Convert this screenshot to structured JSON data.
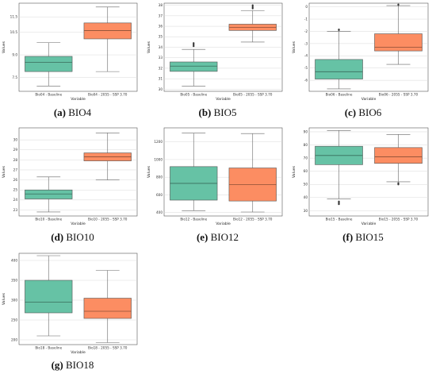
{
  "chart_data": [
    {
      "id": "bio4",
      "type": "box",
      "caption_letter": "(a)",
      "caption_text": "BIO4",
      "xlabel": "Variable",
      "ylabel": "Values",
      "ylim": [
        6.6,
        12.4
      ],
      "yticks": [
        7.5,
        9.0,
        10.5,
        11.5
      ],
      "yticklabels": [
        "7.5",
        "9.0",
        "10.5",
        "11.5"
      ],
      "categories": [
        "Bio04 - Baseline",
        "Bio04 - 2055 - SSP 3.70"
      ],
      "colors": [
        "#66c2a5",
        "#fc8d62"
      ],
      "boxes": [
        {
          "whislo": 6.95,
          "q1": 7.9,
          "med": 8.5,
          "q3": 8.9,
          "whishi": 9.8,
          "fliers": []
        },
        {
          "whislo": 7.9,
          "q1": 10.05,
          "med": 10.6,
          "q3": 11.1,
          "whishi": 12.15,
          "fliers": []
        }
      ]
    },
    {
      "id": "bio5",
      "type": "box",
      "caption_letter": "(b)",
      "caption_text": "BIO5",
      "xlabel": "Variable",
      "ylabel": "Values",
      "ylim": [
        29.8,
        38.2
      ],
      "yticks": [
        30,
        31,
        32,
        33,
        34,
        35,
        36,
        37,
        38
      ],
      "yticklabels": [
        "30",
        "31",
        "32",
        "33",
        "34",
        "35",
        "36",
        "37",
        "38"
      ],
      "categories": [
        "Bio05 - Baseline",
        "Bio05 - 2055 - SSP 3.70"
      ],
      "colors": [
        "#66c2a5",
        "#fc8d62"
      ],
      "boxes": [
        {
          "whislo": 30.3,
          "q1": 31.7,
          "med": 32.2,
          "q3": 32.6,
          "whishi": 33.8,
          "fliers": [
            34.1,
            34.2,
            34.3,
            34.4
          ]
        },
        {
          "whislo": 34.5,
          "q1": 35.6,
          "med": 35.9,
          "q3": 36.2,
          "whishi": 37.5,
          "fliers": [
            37.7,
            37.8,
            37.9,
            38.0
          ]
        }
      ]
    },
    {
      "id": "bio6",
      "type": "box",
      "caption_letter": "(c)",
      "caption_text": "BIO6",
      "xlabel": "Variable",
      "ylabel": "Values",
      "ylim": [
        -6.9,
        0.3
      ],
      "yticks": [
        -6,
        -5,
        -4,
        -3,
        -2,
        -1,
        0
      ],
      "yticklabels": [
        "-6",
        "-5",
        "-4",
        "-3",
        "-2",
        "-1",
        "0"
      ],
      "categories": [
        "Bio06 - Baseline",
        "Bio06 - 2055 - SSP 3.70"
      ],
      "colors": [
        "#66c2a5",
        "#fc8d62"
      ],
      "boxes": [
        {
          "whislo": -6.7,
          "q1": -5.9,
          "med": -5.3,
          "q3": -4.3,
          "whishi": -2.0,
          "fliers": [
            -1.9,
            -1.85
          ]
        },
        {
          "whislo": -4.7,
          "q1": -3.6,
          "med": -3.3,
          "q3": -2.2,
          "whishi": 0.1,
          "fliers": [
            0.15,
            0.2
          ]
        }
      ]
    },
    {
      "id": "bio10",
      "type": "box",
      "caption_letter": "(d)",
      "caption_text": "BIO10",
      "xlabel": "Variable",
      "ylabel": "Values",
      "ylim": [
        22.4,
        31.2
      ],
      "yticks": [
        23,
        24,
        25,
        26,
        27,
        28,
        29,
        30
      ],
      "yticklabels": [
        "23",
        "24",
        "25",
        "26",
        "27",
        "28",
        "29",
        "30"
      ],
      "categories": [
        "Bio10 - Baseline",
        "Bio10 - 2055 - SSP 3.70"
      ],
      "colors": [
        "#66c2a5",
        "#fc8d62"
      ],
      "boxes": [
        {
          "whislo": 22.8,
          "q1": 24.1,
          "med": 24.6,
          "q3": 25.0,
          "whishi": 26.3,
          "fliers": []
        },
        {
          "whislo": 26.0,
          "q1": 27.9,
          "med": 28.3,
          "q3": 28.7,
          "whishi": 30.7,
          "fliers": []
        }
      ]
    },
    {
      "id": "bio12",
      "type": "box",
      "caption_letter": "(e)",
      "caption_text": "BIO12",
      "xlabel": "Variable",
      "ylabel": "Values",
      "ylim": [
        360,
        1360
      ],
      "yticks": [
        400,
        600,
        800,
        1000,
        1200
      ],
      "yticklabels": [
        "400",
        "600",
        "800",
        "1000",
        "1200"
      ],
      "categories": [
        "Bio12 - Baseline",
        "Bio12 - 2055 - SSP 3.70"
      ],
      "colors": [
        "#66c2a5",
        "#fc8d62"
      ],
      "boxes": [
        {
          "whislo": 420,
          "q1": 540,
          "med": 730,
          "q3": 920,
          "whishi": 1300,
          "fliers": []
        },
        {
          "whislo": 405,
          "q1": 530,
          "med": 715,
          "q3": 905,
          "whishi": 1295,
          "fliers": []
        }
      ]
    },
    {
      "id": "bio15",
      "type": "box",
      "caption_letter": "(f)",
      "caption_text": "BIO15",
      "xlabel": "Variable",
      "ylabel": "Values",
      "ylim": [
        26,
        93
      ],
      "yticks": [
        30,
        40,
        50,
        60,
        70,
        80,
        90
      ],
      "yticklabels": [
        "30",
        "40",
        "50",
        "60",
        "70",
        "80",
        "90"
      ],
      "categories": [
        "Bio15 - Baseline",
        "Bio15 - 2055 - SSP 3.70"
      ],
      "colors": [
        "#66c2a5",
        "#fc8d62"
      ],
      "boxes": [
        {
          "whislo": 39,
          "q1": 65,
          "med": 72,
          "q3": 79,
          "whishi": 91,
          "fliers": [
            37,
            36.5,
            36,
            35.5,
            35
          ]
        },
        {
          "whislo": 52,
          "q1": 66,
          "med": 71,
          "q3": 78,
          "whishi": 88,
          "fliers": [
            51,
            50.5,
            50
          ]
        }
      ]
    },
    {
      "id": "bio18",
      "type": "box",
      "caption_letter": "(g)",
      "caption_text": "BIO18",
      "xlabel": "Variable",
      "ylabel": "Values",
      "ylim": [
        188,
        418
      ],
      "yticks": [
        200,
        250,
        300,
        350,
        400
      ],
      "yticklabels": [
        "200",
        "250",
        "300",
        "350",
        "400"
      ],
      "categories": [
        "Bio18 - Baseline",
        "Bio18 - 2055 - SSP 3.70"
      ],
      "colors": [
        "#66c2a5",
        "#fc8d62"
      ],
      "boxes": [
        {
          "whislo": 210,
          "q1": 268,
          "med": 295,
          "q3": 350,
          "whishi": 412,
          "fliers": []
        },
        {
          "whislo": 193,
          "q1": 254,
          "med": 272,
          "q3": 305,
          "whishi": 375,
          "fliers": []
        }
      ]
    }
  ]
}
